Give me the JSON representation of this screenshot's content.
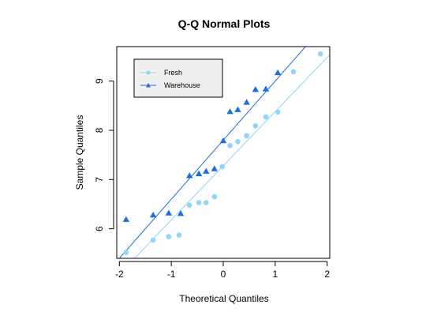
{
  "chart_data": {
    "type": "scatter",
    "title": "Q-Q Normal Plots",
    "xlabel": "Theoretical Quantiles",
    "ylabel": "Sample Quantiles",
    "xlim": [
      -2.05,
      2.05
    ],
    "ylim": [
      5.4,
      9.7
    ],
    "xticks": [
      -2,
      -1,
      0,
      1,
      2
    ],
    "yticks": [
      6,
      7,
      8,
      9
    ],
    "legend_position": "top-left",
    "series": [
      {
        "name": "Fresh",
        "color": "#8fd5fa",
        "marker": "circle",
        "x": [
          -1.87,
          -1.35,
          -1.05,
          -0.85,
          -0.65,
          -0.47,
          -0.33,
          -0.17,
          -0.02,
          0.13,
          0.28,
          0.45,
          0.62,
          0.82,
          1.05,
          1.35,
          1.87
        ],
        "y": [
          5.52,
          5.77,
          5.84,
          5.87,
          6.48,
          6.53,
          6.53,
          6.65,
          7.26,
          7.69,
          7.77,
          7.89,
          8.09,
          8.27,
          8.37,
          9.19,
          9.55
        ],
        "qq_line": {
          "slope": 1.1,
          "intercept": 7.28
        }
      },
      {
        "name": "Warehouse",
        "color": "#1a6fe0",
        "marker": "triangle",
        "x": [
          -1.87,
          -1.35,
          -1.05,
          -0.82,
          -0.65,
          -0.47,
          -0.33,
          -0.17,
          0.0,
          0.13,
          0.28,
          0.45,
          0.62,
          0.82,
          1.05
        ],
        "y": [
          6.19,
          6.28,
          6.32,
          6.31,
          7.08,
          7.12,
          7.17,
          7.22,
          7.79,
          8.38,
          8.42,
          8.57,
          8.83,
          8.84,
          9.17
        ],
        "qq_line": {
          "slope": 1.2,
          "intercept": 7.8
        }
      }
    ]
  }
}
